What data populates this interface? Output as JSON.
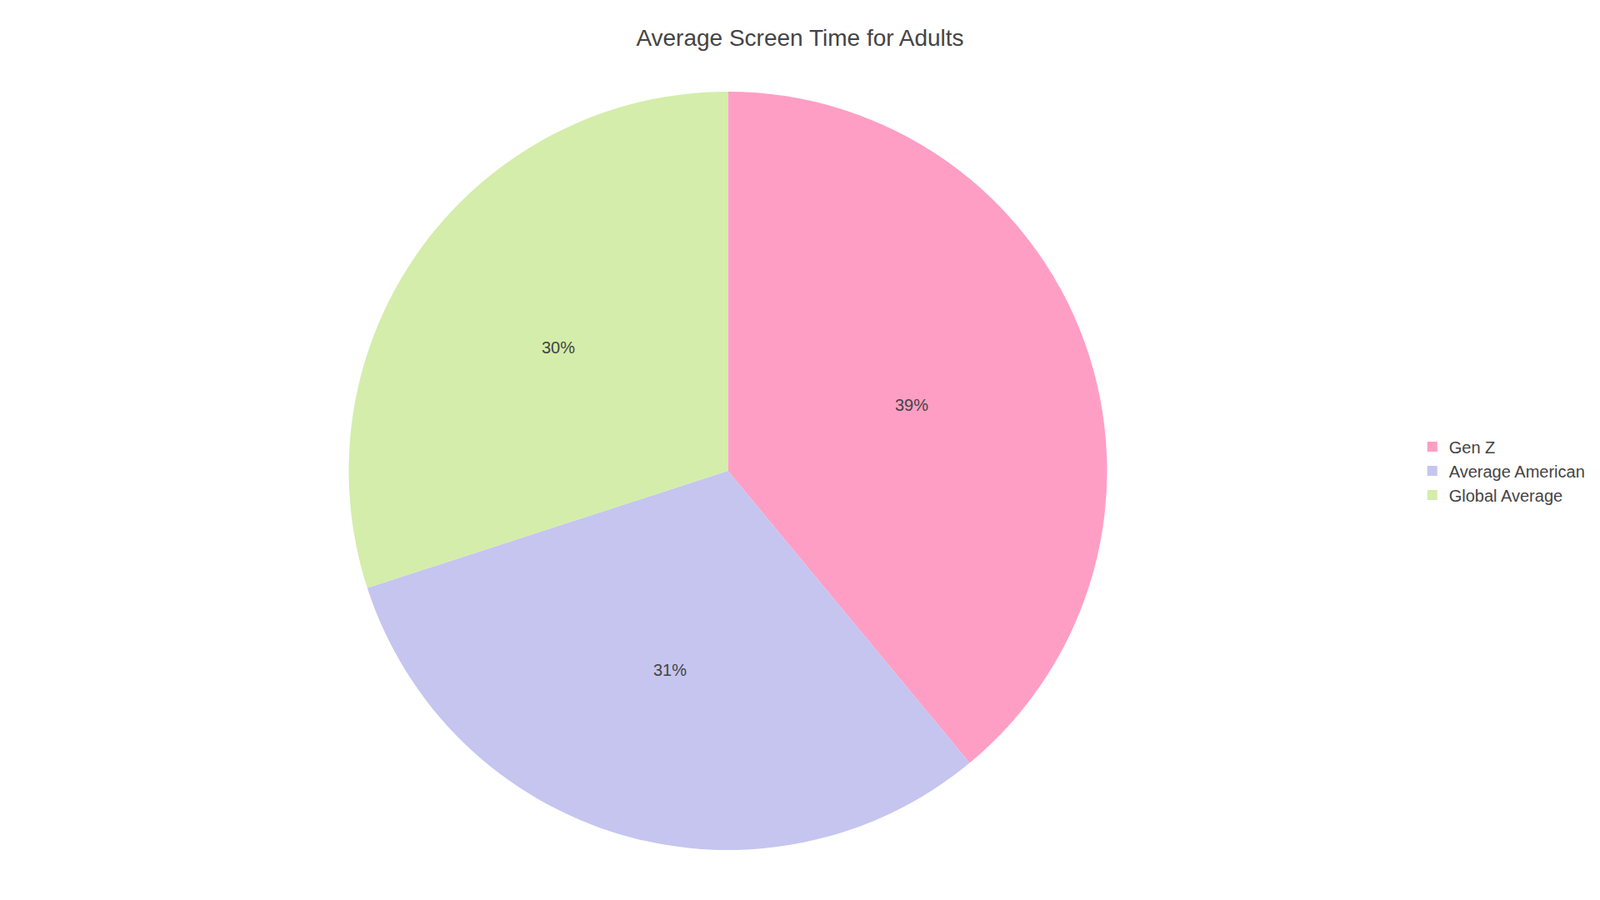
{
  "chart_data": {
    "type": "pie",
    "title": "Average Screen Time for Adults",
    "categories": [
      "Gen Z",
      "Average American",
      "Global Average"
    ],
    "values": [
      39,
      31,
      30
    ],
    "value_labels": [
      "39%",
      "31%",
      "30%"
    ],
    "data_labels": true,
    "colors": [
      "#FF9EC4",
      "#C5C5F0",
      "#D4EDAA"
    ],
    "legend": "right"
  }
}
